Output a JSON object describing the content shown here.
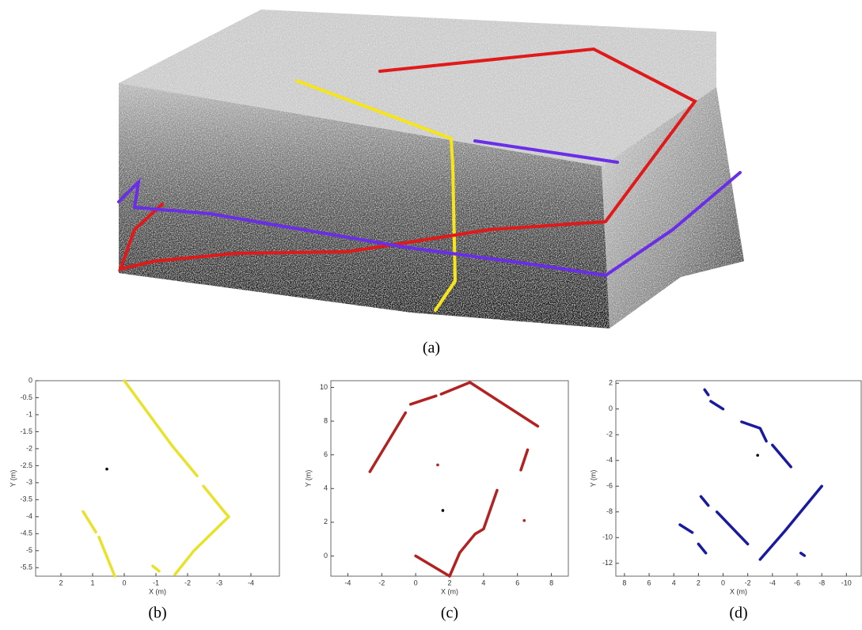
{
  "panel_a": {
    "caption": "(a)"
  },
  "chart_data": [
    {
      "type": "line",
      "caption": "(b)",
      "xlabel": "X (m)",
      "ylabel": "Y (m)",
      "color": "#e8e22a",
      "reverse_x": true,
      "xlim": [
        2.8,
        -4.9
      ],
      "ylim": [
        -5.75,
        0
      ],
      "xticks": [
        2,
        1,
        0,
        -1,
        -2,
        -3,
        -4
      ],
      "yticks": [
        0,
        -0.5,
        -1,
        -1.5,
        -2,
        -2.5,
        -3,
        -3.5,
        -4,
        -4.5,
        -5,
        -5.5
      ],
      "x": [
        0,
        -1.5,
        -2.3,
        null,
        -2.5,
        -3.2,
        -3.3,
        -2.2,
        -1.6,
        null,
        1.3,
        0.9,
        null,
        0.8,
        0.3,
        null,
        -0.9,
        -1.1
      ],
      "values": [
        0,
        -1.9,
        -2.8,
        null,
        -3.1,
        -3.9,
        -4.0,
        -5.0,
        -5.7,
        null,
        -3.85,
        -4.45,
        null,
        -4.6,
        -5.75,
        null,
        -5.45,
        -5.6
      ],
      "marker": {
        "x": 0.55,
        "y": -2.6
      }
    },
    {
      "type": "line",
      "caption": "(c)",
      "xlabel": "X (m)",
      "ylabel": "Y (m)",
      "color": "#b22222",
      "reverse_x": false,
      "xlim": [
        -5.0,
        9.0
      ],
      "ylim": [
        -1.2,
        10.4
      ],
      "xticks": [
        -4,
        -2,
        0,
        2,
        4,
        6,
        8
      ],
      "yticks": [
        0,
        2,
        4,
        6,
        8,
        10
      ],
      "x": [
        -2.7,
        -0.6,
        null,
        -0.3,
        1.2,
        null,
        1.5,
        3.2,
        7.2,
        null,
        0,
        2.0,
        2.6,
        3.5,
        4.0,
        4.8,
        null,
        6.2,
        6.6
      ],
      "values": [
        5.0,
        8.5,
        null,
        9.0,
        9.5,
        null,
        9.6,
        10.3,
        7.7,
        null,
        0,
        -1.2,
        0.2,
        1.3,
        1.6,
        3.9,
        null,
        5.1,
        6.3
      ],
      "dots": {
        "x": [
          1.3,
          6.4
        ],
        "y": [
          5.4,
          2.1
        ]
      },
      "marker": {
        "x": 1.6,
        "y": 2.7
      }
    },
    {
      "type": "line",
      "caption": "(d)",
      "xlabel": "X (m)",
      "ylabel": "Y (m)",
      "color": "#1a1aa0",
      "reverse_x": true,
      "xlim": [
        8.7,
        -11.2
      ],
      "ylim": [
        -13.0,
        2.2
      ],
      "xticks": [
        8,
        6,
        4,
        2,
        0,
        -2,
        -4,
        -6,
        -8,
        -10
      ],
      "yticks": [
        2,
        0,
        -2,
        -4,
        -6,
        -8,
        -10,
        -12
      ],
      "x": [
        1.5,
        1.2,
        null,
        1.0,
        0,
        null,
        -1.5,
        -3.0,
        -3.5,
        null,
        -4.0,
        -5.5,
        null,
        -8,
        -5,
        -3,
        null,
        -2,
        0.5,
        null,
        1.8,
        1.2,
        null,
        3.5,
        2.5,
        null,
        2,
        1.4,
        null,
        -6.3,
        -6.6
      ],
      "values": [
        1.5,
        1.1,
        null,
        0.6,
        0,
        null,
        -1.0,
        -1.5,
        -2.5,
        null,
        -2.8,
        -4.5,
        null,
        -6,
        -9.5,
        -11.7,
        null,
        -10.5,
        -8,
        null,
        -6.8,
        -7.5,
        null,
        -9,
        -9.6,
        null,
        -10.5,
        -11.2,
        null,
        -11.2,
        -11.4
      ],
      "marker": {
        "x": -2.8,
        "y": -3.6
      }
    }
  ]
}
